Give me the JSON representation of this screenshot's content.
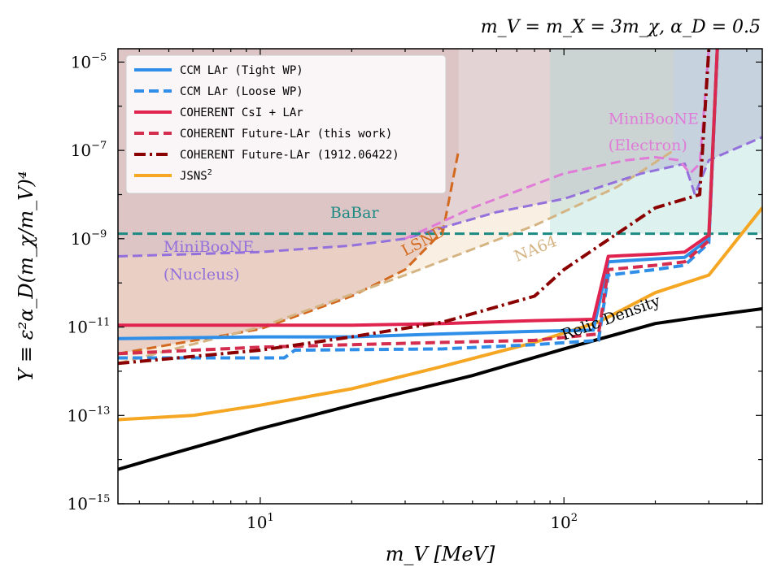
{
  "chart_data": {
    "type": "line",
    "title": "m_V = m_X = 3m_χ, α_D = 0.5",
    "xlabel": "m_V [MeV]",
    "ylabel": "Y ≡ ε²α_D(m_χ/m_V)⁴",
    "xscale": "log",
    "yscale": "log",
    "xlim": [
      3.4,
      450
    ],
    "ylim": [
      1e-15,
      2e-05
    ],
    "x_ticks": [
      {
        "base": "10",
        "exp": "1",
        "value": 10
      },
      {
        "base": "10",
        "exp": "2",
        "value": 100
      }
    ],
    "y_ticks": [
      {
        "base": "10",
        "exp": "−15",
        "value": 1e-15
      },
      {
        "base": "10",
        "exp": "−13",
        "value": 1e-13
      },
      {
        "base": "10",
        "exp": "−11",
        "value": 1e-11
      },
      {
        "base": "10",
        "exp": "−9",
        "value": 1e-09
      },
      {
        "base": "10",
        "exp": "−7",
        "value": 1e-07
      },
      {
        "base": "10",
        "exp": "−5",
        "value": 1e-05
      }
    ],
    "legend": {
      "position": "top-left",
      "entries": [
        {
          "label": "CCM LAr (Tight WP)",
          "color": "#2f8fe8",
          "style": "solid"
        },
        {
          "label": "CCM LAr (Loose WP)",
          "color": "#2f8fe8",
          "style": "dashed"
        },
        {
          "label": "COHERENT CsI + LAr",
          "color": "#e0244f",
          "style": "solid"
        },
        {
          "label": "COHERENT Future-LAr (this work)",
          "color": "#d42d4d",
          "style": "dashed"
        },
        {
          "label": "COHERENT Future-LAr (1912.06422)",
          "color": "#8b0000",
          "style": "dashdot"
        },
        {
          "label": "JSNS",
          "label_sup": "2",
          "color": "#f5a623",
          "style": "solid"
        }
      ]
    },
    "shaded_regions": [
      {
        "name": "LSND / BaBar excluded",
        "color": "#c98f8f",
        "opacity": 0.45,
        "x": [
          3.4,
          45
        ],
        "y": [
          2e-05,
          2e-05
        ]
      },
      {
        "name": "MiniBooNE (Electron) excluded",
        "color": "#b9a3d0",
        "opacity": 0.5
      },
      {
        "name": "NA64 excluded",
        "color": "#f0d8b8",
        "opacity": 0.4
      },
      {
        "name": "BaBar band",
        "color": "#9fd6d0",
        "opacity": 0.35
      }
    ],
    "series": [
      {
        "name": "Relic Density",
        "color": "#000000",
        "style": "solid",
        "x": [
          3.4,
          5,
          10,
          20,
          50,
          100,
          200,
          300,
          450
        ],
        "y": [
          6e-15,
          1.3e-14,
          5e-14,
          1.7e-13,
          8e-13,
          3.2e-12,
          1.2e-11,
          1.8e-11,
          2.6e-11
        ]
      },
      {
        "name": "JSNS2",
        "color": "#f5a623",
        "style": "solid",
        "x": [
          3.4,
          6,
          10,
          20,
          40,
          80,
          130,
          200,
          300,
          450
        ],
        "y": [
          8e-14,
          1e-13,
          1.7e-13,
          4e-13,
          1.3e-12,
          4.5e-12,
          1.3e-11,
          6e-11,
          1.5e-10,
          5e-09
        ]
      },
      {
        "name": "CCM LAr (Tight WP)",
        "color": "#2f8fe8",
        "style": "solid",
        "x": [
          3.4,
          10,
          20,
          40,
          80,
          125,
          140,
          200,
          250,
          300,
          320
        ],
        "y": [
          5.5e-12,
          6e-12,
          6e-12,
          7e-12,
          8e-12,
          8.5e-12,
          3e-10,
          3.5e-10,
          3.8e-10,
          1e-09,
          2e-05
        ]
      },
      {
        "name": "CCM LAr (Loose WP)",
        "color": "#2f8fe8",
        "style": "dashed",
        "x": [
          3.4,
          12,
          13,
          40,
          80,
          130,
          140,
          200,
          250,
          300,
          320
        ],
        "y": [
          2e-12,
          2e-12,
          3e-12,
          3.2e-12,
          4e-12,
          5e-12,
          1.5e-10,
          2e-10,
          2.5e-10,
          8e-10,
          2e-05
        ]
      },
      {
        "name": "COHERENT CsI + LAr",
        "color": "#e0244f",
        "style": "solid",
        "x": [
          3.4,
          10,
          20,
          40,
          80,
          125,
          140,
          200,
          250,
          300,
          320
        ],
        "y": [
          1.1e-11,
          1.1e-11,
          1.1e-11,
          1.2e-11,
          1.4e-11,
          1.5e-11,
          4e-10,
          4.5e-10,
          5e-10,
          1.2e-09,
          2e-05
        ]
      },
      {
        "name": "COHERENT Future-LAr (this work)",
        "color": "#d42d4d",
        "style": "dashed",
        "x": [
          3.4,
          10,
          20,
          40,
          80,
          130,
          140,
          200,
          250,
          300,
          320
        ],
        "y": [
          2.5e-12,
          3.5e-12,
          4e-12,
          4.5e-12,
          5e-12,
          7e-12,
          2e-10,
          2.5e-10,
          3e-10,
          9e-10,
          2e-05
        ]
      },
      {
        "name": "COHERENT Future-LAr (1912.06422)",
        "color": "#8b0000",
        "style": "dashdot",
        "x": [
          3.4,
          10,
          20,
          40,
          80,
          100,
          200,
          280,
          300
        ],
        "y": [
          1.5e-12,
          3e-12,
          6e-12,
          1.3e-11,
          5e-11,
          2e-10,
          5e-09,
          1e-08,
          2e-05
        ]
      }
    ],
    "boundary_curves": [
      {
        "name": "LSND",
        "color": "#d2691e",
        "style": "dashed",
        "x": [
          3.4,
          10,
          20,
          30,
          40,
          45
        ],
        "y": [
          2.5e-12,
          9e-12,
          5e-11,
          2e-10,
          1.5e-09,
          1e-07
        ]
      },
      {
        "name": "NA64",
        "color": "#d4b483",
        "style": "dashed",
        "x": [
          3.4,
          10,
          30,
          80,
          150,
          230
        ],
        "y": [
          1.5e-12,
          1e-11,
          1.5e-10,
          2e-09,
          1.5e-08,
          1e-07
        ]
      },
      {
        "name": "MiniBooNE (Nucleus)",
        "color": "#9370db",
        "style": "dashed",
        "x": [
          3.4,
          10,
          20,
          30,
          40,
          60,
          100,
          180,
          250,
          270,
          300,
          450
        ],
        "y": [
          4e-10,
          5e-10,
          7e-10,
          1e-09,
          1.8e-09,
          4e-09,
          8e-09,
          3e-08,
          5e-08,
          1e-08,
          6e-08,
          2e-07
        ]
      },
      {
        "name": "MiniBooNE (Electron)",
        "color": "#e07bd8",
        "style": "dashed",
        "x": [
          30,
          50,
          100,
          160,
          200,
          240,
          260,
          280,
          300
        ],
        "y": [
          1e-09,
          5e-09,
          3e-08,
          6e-08,
          7e-08,
          6e-08,
          3e-08,
          5e-08,
          2e-05
        ]
      },
      {
        "name": "BaBar",
        "color": "#1a8a82",
        "style": "dashed",
        "x": [
          3.4,
          450
        ],
        "y": [
          1.3e-09,
          1.3e-09
        ]
      }
    ],
    "annotations": [
      {
        "text": "BaBar",
        "color": "#1a8a82",
        "x": 17,
        "y": 3e-09
      },
      {
        "text": "LSND",
        "color": "#d2691e",
        "x": 30,
        "y": 4e-10
      },
      {
        "text": "NA64",
        "color": "#d4b483",
        "x": 70,
        "y": 3e-10
      },
      {
        "text": "MiniBooNE",
        "color": "#9370db",
        "x": 4.8,
        "y": 5e-10
      },
      {
        "text": "(Nucleus)",
        "color": "#9370db",
        "x": 4.8,
        "y": 1.2e-10
      },
      {
        "text": "MiniBooNE",
        "color": "#e07bd8",
        "x": 140,
        "y": 4e-07
      },
      {
        "text": "(Electron)",
        "color": "#e07bd8",
        "x": 140,
        "y": 1e-07
      },
      {
        "text": "Relic Density",
        "color": "#000000",
        "x": 100,
        "y": 5e-12
      }
    ]
  }
}
